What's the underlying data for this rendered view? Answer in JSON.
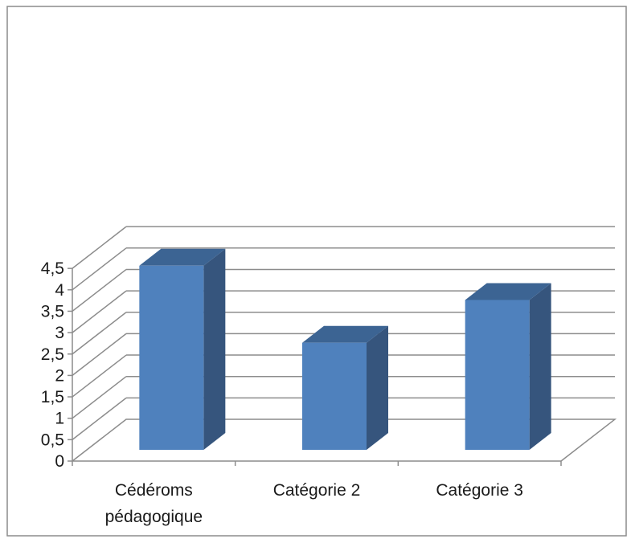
{
  "chart_data": {
    "type": "bar",
    "style": "3d-column",
    "categories": [
      "Cédéroms pédagogique",
      "Catégorie 2",
      "Catégorie 3"
    ],
    "category_label_lines": [
      [
        "Cédéroms",
        "pédagogique"
      ],
      [
        "Catégorie 2"
      ],
      [
        "Catégorie 3"
      ]
    ],
    "values": [
      4.3,
      2.5,
      3.5
    ],
    "ylim": [
      0,
      4.5
    ],
    "yticks": [
      "0",
      "0,5",
      "1",
      "1,5",
      "2",
      "2,5",
      "3",
      "3,5",
      "4",
      "4,5"
    ],
    "title": "",
    "xlabel": "",
    "ylabel": "",
    "grid": true,
    "legend": "none",
    "colors": {
      "bar_front": "#4f81bd",
      "bar_side": "#36557d",
      "bar_top": "#3c6493",
      "gridline": "#8c8c8c",
      "axis": "#8c8c8c",
      "frame": "#8c8c8c"
    }
  }
}
